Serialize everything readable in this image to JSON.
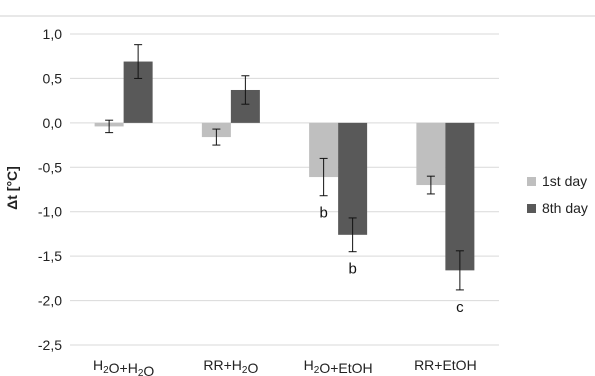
{
  "chart_data": {
    "type": "bar",
    "ylabel": "Δt [°C]",
    "ylim": [
      -2.5,
      1.0
    ],
    "yticks": [
      1.0,
      0.5,
      0.0,
      -0.5,
      -1.0,
      -1.5,
      -2.0,
      -2.5
    ],
    "ytick_labels": [
      "1,0",
      "0,5",
      "0,0",
      "-0,5",
      "-1,0",
      "-1,5",
      "-2,0",
      "-2,5"
    ],
    "grid": true,
    "legend_position": "right",
    "categories": [
      {
        "parts": [
          [
            "H",
            ""
          ],
          [
            "2",
            "sub"
          ],
          [
            "O+H",
            ""
          ],
          [
            "2",
            "sub"
          ],
          [
            "O",
            ""
          ]
        ]
      },
      {
        "parts": [
          [
            "RR+H",
            ""
          ],
          [
            "2",
            "sub"
          ],
          [
            "O",
            ""
          ]
        ]
      },
      {
        "parts": [
          [
            "H",
            ""
          ],
          [
            "2",
            "sub"
          ],
          [
            "O+EtOH",
            ""
          ]
        ]
      },
      {
        "parts": [
          [
            "RR+EtOH",
            ""
          ]
        ]
      }
    ],
    "series": [
      {
        "name": "1st day",
        "color": "#bfbfbf",
        "values": [
          -0.04,
          -0.16,
          -0.61,
          -0.7
        ],
        "errors": [
          0.07,
          0.09,
          0.21,
          0.1
        ],
        "annotations": [
          "",
          "",
          "b",
          ""
        ]
      },
      {
        "name": "8th day",
        "color": "#595959",
        "values": [
          0.69,
          0.37,
          -1.26,
          -1.66
        ],
        "errors": [
          0.19,
          0.16,
          0.19,
          0.22
        ],
        "annotations": [
          "",
          "",
          "b",
          "c"
        ]
      }
    ]
  }
}
